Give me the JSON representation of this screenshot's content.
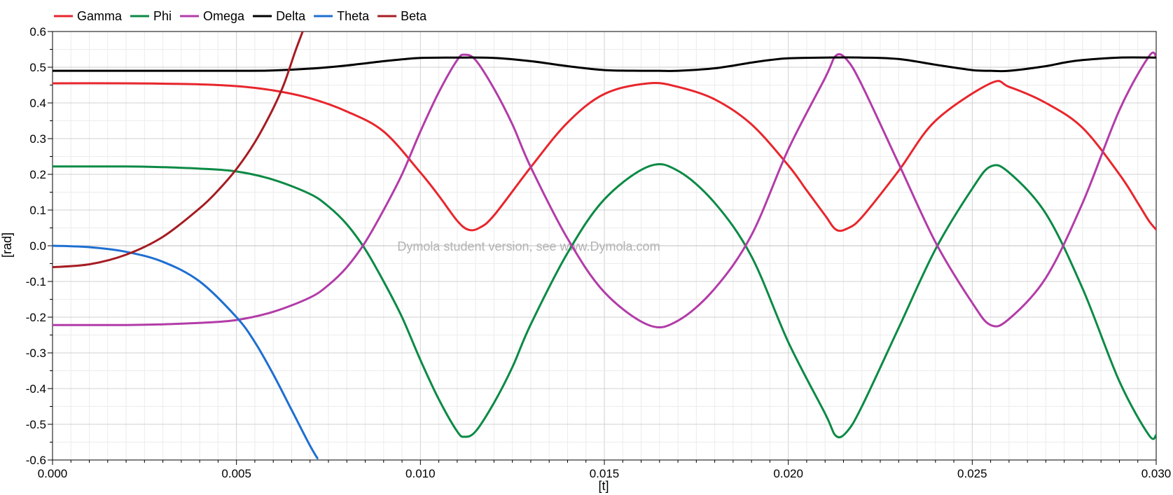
{
  "chart_data": {
    "type": "line",
    "title": "",
    "xlabel": "[t]",
    "ylabel": "[rad]",
    "xlim": [
      0.0,
      0.03
    ],
    "ylim": [
      -0.6,
      0.6
    ],
    "x_ticks": [
      "0.000",
      "0.005",
      "0.010",
      "0.015",
      "0.020",
      "0.025",
      "0.030"
    ],
    "y_ticks": [
      "0.6",
      "0.5",
      "0.4",
      "0.3",
      "0.2",
      "0.1",
      "0.0",
      "-0.1",
      "-0.2",
      "-0.3",
      "-0.4",
      "-0.5",
      "-0.6"
    ],
    "grid": true,
    "legend_position": "top-left",
    "watermark": "Dymola student version, see www.Dymola.com",
    "series": [
      {
        "name": "Gamma",
        "color": "#e8262d",
        "x": [
          0,
          0.002,
          0.003,
          0.004,
          0.005,
          0.006,
          0.007,
          0.008,
          0.009,
          0.01,
          0.0105,
          0.011,
          0.0113,
          0.0116,
          0.012,
          0.013,
          0.014,
          0.015,
          0.0162,
          0.017,
          0.018,
          0.019,
          0.02,
          0.0205,
          0.021,
          0.0213,
          0.0216,
          0.022,
          0.023,
          0.024,
          0.0255,
          0.026,
          0.027,
          0.028,
          0.029,
          0.0295,
          0.0298,
          0.03
        ],
        "y": [
          0.455,
          0.455,
          0.454,
          0.452,
          0.447,
          0.435,
          0.413,
          0.376,
          0.32,
          0.205,
          0.14,
          0.07,
          0.045,
          0.05,
          0.085,
          0.22,
          0.345,
          0.425,
          0.455,
          0.445,
          0.41,
          0.34,
          0.225,
          0.155,
          0.085,
          0.045,
          0.048,
          0.08,
          0.21,
          0.35,
          0.455,
          0.445,
          0.4,
          0.33,
          0.2,
          0.12,
          0.07,
          0.045
        ]
      },
      {
        "name": "Phi",
        "color": "#0b8a45",
        "x": [
          0,
          0.002,
          0.003,
          0.004,
          0.005,
          0.006,
          0.007,
          0.0075,
          0.008,
          0.0085,
          0.009,
          0.0095,
          0.01,
          0.0105,
          0.011,
          0.0112,
          0.0115,
          0.012,
          0.0125,
          0.013,
          0.014,
          0.015,
          0.0162,
          0.017,
          0.018,
          0.019,
          0.02,
          0.021,
          0.0213,
          0.0216,
          0.022,
          0.023,
          0.024,
          0.025,
          0.0255,
          0.026,
          0.027,
          0.028,
          0.029,
          0.0298,
          0.03
        ],
        "y": [
          0.222,
          0.222,
          0.22,
          0.216,
          0.208,
          0.185,
          0.145,
          0.11,
          0.06,
          -0.01,
          -0.1,
          -0.2,
          -0.32,
          -0.43,
          -0.52,
          -0.535,
          -0.52,
          -0.44,
          -0.34,
          -0.22,
          -0.02,
          0.13,
          0.222,
          0.21,
          0.12,
          -0.03,
          -0.27,
          -0.47,
          -0.533,
          -0.52,
          -0.45,
          -0.23,
          -0.01,
          0.16,
          0.222,
          0.205,
          0.09,
          -0.12,
          -0.38,
          -0.53,
          -0.53
        ]
      },
      {
        "name": "Omega",
        "color": "#b23ca8",
        "x": [
          0,
          0.002,
          0.003,
          0.004,
          0.005,
          0.006,
          0.007,
          0.0075,
          0.008,
          0.0085,
          0.009,
          0.0095,
          0.01,
          0.0105,
          0.011,
          0.0112,
          0.0115,
          0.012,
          0.0125,
          0.013,
          0.014,
          0.015,
          0.0162,
          0.017,
          0.018,
          0.019,
          0.02,
          0.021,
          0.0213,
          0.0216,
          0.022,
          0.023,
          0.024,
          0.025,
          0.0255,
          0.026,
          0.027,
          0.028,
          0.029,
          0.0298,
          0.03
        ],
        "y": [
          -0.222,
          -0.222,
          -0.22,
          -0.216,
          -0.208,
          -0.185,
          -0.145,
          -0.11,
          -0.06,
          0.01,
          0.1,
          0.2,
          0.32,
          0.43,
          0.52,
          0.535,
          0.52,
          0.44,
          0.34,
          0.22,
          0.02,
          -0.13,
          -0.222,
          -0.21,
          -0.12,
          0.03,
          0.27,
          0.47,
          0.533,
          0.52,
          0.45,
          0.23,
          0.01,
          -0.16,
          -0.222,
          -0.205,
          -0.09,
          0.12,
          0.38,
          0.53,
          0.53
        ]
      },
      {
        "name": "Delta",
        "color": "#000000",
        "x": [
          0,
          0.005,
          0.006,
          0.007,
          0.008,
          0.009,
          0.0095,
          0.01,
          0.011,
          0.012,
          0.013,
          0.014,
          0.015,
          0.016,
          0.0165,
          0.017,
          0.018,
          0.019,
          0.0195,
          0.02,
          0.021,
          0.022,
          0.023,
          0.024,
          0.025,
          0.0255,
          0.026,
          0.027,
          0.0275,
          0.028,
          0.029,
          0.03
        ],
        "y": [
          0.49,
          0.49,
          0.491,
          0.496,
          0.505,
          0.517,
          0.522,
          0.526,
          0.527,
          0.526,
          0.517,
          0.503,
          0.492,
          0.49,
          0.49,
          0.49,
          0.497,
          0.513,
          0.52,
          0.525,
          0.527,
          0.527,
          0.523,
          0.507,
          0.492,
          0.49,
          0.49,
          0.503,
          0.513,
          0.52,
          0.527,
          0.527
        ]
      },
      {
        "name": "Theta",
        "color": "#1e6fd1",
        "x": [
          0,
          0.001,
          0.002,
          0.003,
          0.004,
          0.005,
          0.0055,
          0.006,
          0.0065,
          0.007,
          0.0072
        ],
        "y": [
          0.0,
          -0.004,
          -0.017,
          -0.045,
          -0.1,
          -0.2,
          -0.27,
          -0.36,
          -0.46,
          -0.56,
          -0.595
        ]
      },
      {
        "name": "Beta",
        "color": "#a61c22",
        "x": [
          0,
          0.001,
          0.002,
          0.003,
          0.004,
          0.0045,
          0.005,
          0.0055,
          0.006,
          0.0063,
          0.0066,
          0.0068
        ],
        "y": [
          -0.06,
          -0.052,
          -0.025,
          0.025,
          0.105,
          0.155,
          0.215,
          0.29,
          0.385,
          0.455,
          0.545,
          0.6
        ]
      }
    ]
  }
}
